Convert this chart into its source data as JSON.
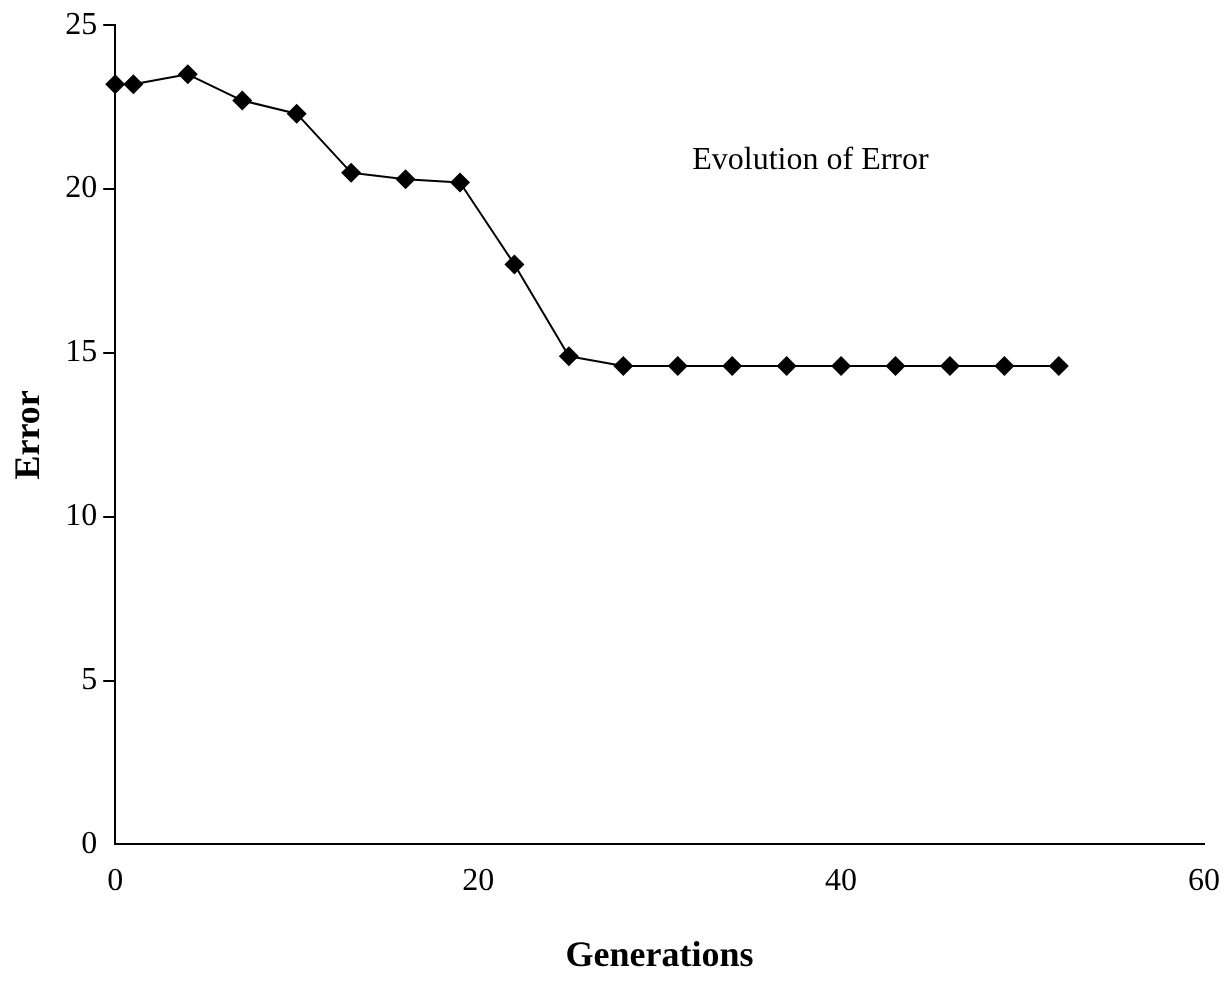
{
  "chart_data": {
    "type": "line",
    "xlabel": "Generations",
    "ylabel": "Error",
    "annotations": [
      "Evolution of Error"
    ],
    "x": [
      0,
      1,
      4,
      7,
      10,
      13,
      16,
      19,
      22,
      25,
      28,
      31,
      34,
      37,
      40,
      43,
      46,
      49,
      52
    ],
    "series": [
      {
        "color": "#000000",
        "values": [
          23.2,
          23.2,
          23.5,
          22.7,
          22.3,
          20.5,
          20.3,
          20.2,
          17.7,
          14.9,
          14.6,
          14.6,
          14.6,
          14.6,
          14.6,
          14.6,
          14.6,
          14.6,
          14.6
        ]
      }
    ],
    "xlim": [
      0,
      60
    ],
    "xticks": [
      0,
      20,
      40,
      60
    ],
    "ylim": [
      0,
      25
    ],
    "yticks": [
      0,
      5,
      10,
      15,
      20,
      25
    ],
    "grid": false,
    "legend": false,
    "marker": "diamond",
    "line_style": "solid"
  }
}
